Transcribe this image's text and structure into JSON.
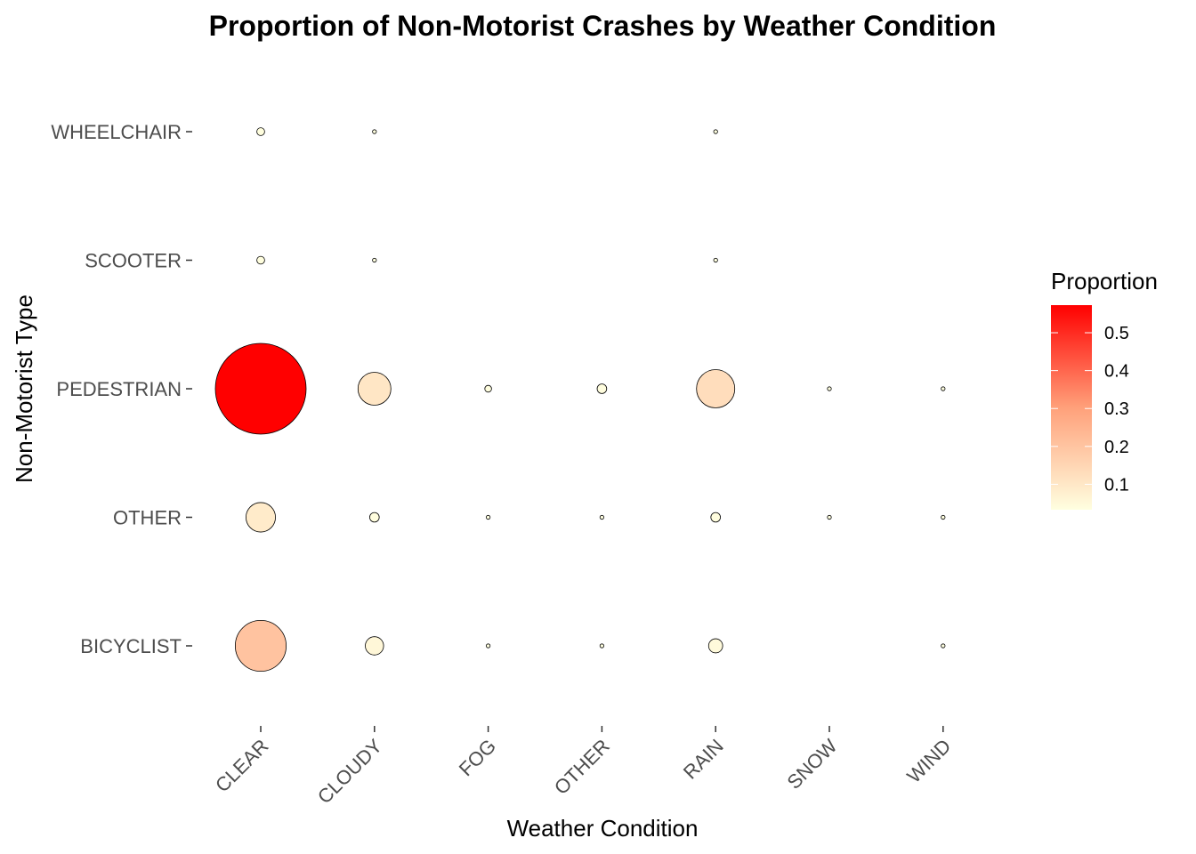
{
  "chart_data": {
    "type": "scatter",
    "subtype": "bubble-grid",
    "title": "Proportion of Non-Motorist Crashes by Weather Condition",
    "xlabel": "Weather Condition",
    "ylabel": "Non-Motorist Type",
    "x_categories": [
      "CLEAR",
      "CLOUDY",
      "FOG",
      "OTHER",
      "RAIN",
      "SNOW",
      "WIND"
    ],
    "y_categories": [
      "BICYCLIST",
      "OTHER",
      "PEDESTRIAN",
      "SCOOTER",
      "WHEELCHAIR"
    ],
    "points": [
      {
        "x": "CLEAR",
        "y": "WHEELCHAIR",
        "value": 0.004
      },
      {
        "x": "CLOUDY",
        "y": "WHEELCHAIR",
        "value": 0.0005
      },
      {
        "x": "RAIN",
        "y": "WHEELCHAIR",
        "value": 0.0005
      },
      {
        "x": "CLEAR",
        "y": "SCOOTER",
        "value": 0.004
      },
      {
        "x": "CLOUDY",
        "y": "SCOOTER",
        "value": 0.0005
      },
      {
        "x": "RAIN",
        "y": "SCOOTER",
        "value": 0.0005
      },
      {
        "x": "CLEAR",
        "y": "PEDESTRIAN",
        "value": 0.54
      },
      {
        "x": "CLOUDY",
        "y": "PEDESTRIAN",
        "value": 0.071
      },
      {
        "x": "FOG",
        "y": "PEDESTRIAN",
        "value": 0.003
      },
      {
        "x": "OTHER",
        "y": "PEDESTRIAN",
        "value": 0.006
      },
      {
        "x": "RAIN",
        "y": "PEDESTRIAN",
        "value": 0.096
      },
      {
        "x": "SNOW",
        "y": "PEDESTRIAN",
        "value": 0.0008
      },
      {
        "x": "WIND",
        "y": "PEDESTRIAN",
        "value": 0.0008
      },
      {
        "x": "CLEAR",
        "y": "OTHER",
        "value": 0.057
      },
      {
        "x": "CLOUDY",
        "y": "OTHER",
        "value": 0.006
      },
      {
        "x": "FOG",
        "y": "OTHER",
        "value": 0.0003
      },
      {
        "x": "OTHER",
        "y": "OTHER",
        "value": 0.0003
      },
      {
        "x": "RAIN",
        "y": "OTHER",
        "value": 0.006
      },
      {
        "x": "SNOW",
        "y": "OTHER",
        "value": 0.0003
      },
      {
        "x": "WIND",
        "y": "OTHER",
        "value": 0.0003
      },
      {
        "x": "CLEAR",
        "y": "BICYCLIST",
        "value": 0.17
      },
      {
        "x": "CLOUDY",
        "y": "BICYCLIST",
        "value": 0.022
      },
      {
        "x": "FOG",
        "y": "BICYCLIST",
        "value": 0.0003
      },
      {
        "x": "OTHER",
        "y": "BICYCLIST",
        "value": 0.0003
      },
      {
        "x": "RAIN",
        "y": "BICYCLIST",
        "value": 0.013
      },
      {
        "x": "WIND",
        "y": "BICYCLIST",
        "value": 0.0003
      }
    ],
    "size_and_color_encode": "value",
    "legend": {
      "title": "Proportion",
      "position": "right",
      "ticks": [
        0.1,
        0.2,
        0.3,
        0.4,
        0.5
      ],
      "tick_labels": [
        "0.1",
        "0.2",
        "0.3",
        "0.4",
        "0.5"
      ],
      "range": [
        0,
        0.54
      ],
      "color_low": "#FFFFE0",
      "color_mid": "#FFA07A",
      "color_high": "#FF0000"
    },
    "grid": false
  }
}
